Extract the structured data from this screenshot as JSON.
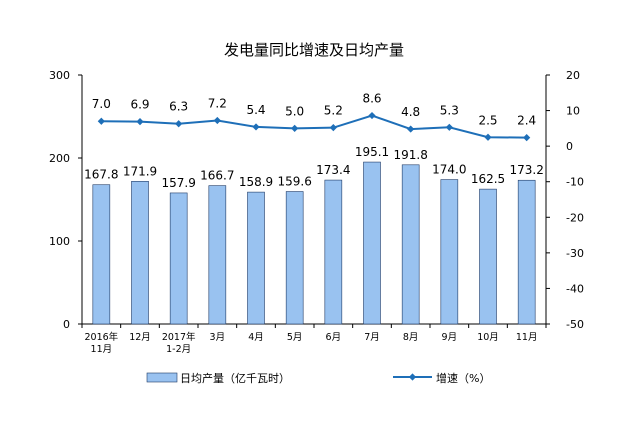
{
  "chart_data": {
    "type": "bar",
    "title": "发电量同比增速及日均产量",
    "categories": [
      [
        "2016年",
        "11月"
      ],
      [
        "12月"
      ],
      [
        "2017年",
        "1-2月"
      ],
      [
        "3月"
      ],
      [
        "4月"
      ],
      [
        "5月"
      ],
      [
        "6月"
      ],
      [
        "7月"
      ],
      [
        "8月"
      ],
      [
        "9月"
      ],
      [
        "10月"
      ],
      [
        "11月"
      ]
    ],
    "series": [
      {
        "name": "日均产量（亿千瓦时）",
        "type": "bar",
        "axis": "left",
        "values": [
          167.8,
          171.9,
          157.9,
          166.7,
          158.9,
          159.6,
          173.4,
          195.1,
          191.8,
          174.0,
          162.5,
          173.2
        ],
        "labels": [
          "167.8",
          "171.9",
          "157.9",
          "166.7",
          "158.9",
          "159.6",
          "173.4",
          "195.1",
          "191.8",
          "174.0",
          "162.5",
          "173.2"
        ]
      },
      {
        "name": "增速（%）",
        "type": "line",
        "axis": "right",
        "values": [
          7.0,
          6.9,
          6.3,
          7.2,
          5.4,
          5.0,
          5.2,
          8.6,
          4.8,
          5.3,
          2.5,
          2.4
        ],
        "labels": [
          "7.0",
          "6.9",
          "6.3",
          "7.2",
          "5.4",
          "5.0",
          "5.2",
          "8.6",
          "4.8",
          "5.3",
          "2.5",
          "2.4"
        ]
      }
    ],
    "left_axis": {
      "ylim": [
        0,
        300
      ],
      "ticks": [
        "0",
        "100",
        "200",
        "300"
      ]
    },
    "right_axis": {
      "ylim": [
        -50,
        20
      ],
      "ticks": [
        "20",
        "10",
        "0",
        "-10",
        "-20",
        "-30",
        "-40",
        "-50"
      ]
    },
    "grid": false,
    "legend_position": "bottom",
    "colors": {
      "bar_fill": "#99c2f0",
      "bar_stroke": "#1f3a66",
      "line": "#1e6fb8",
      "axis": "#000000"
    }
  }
}
